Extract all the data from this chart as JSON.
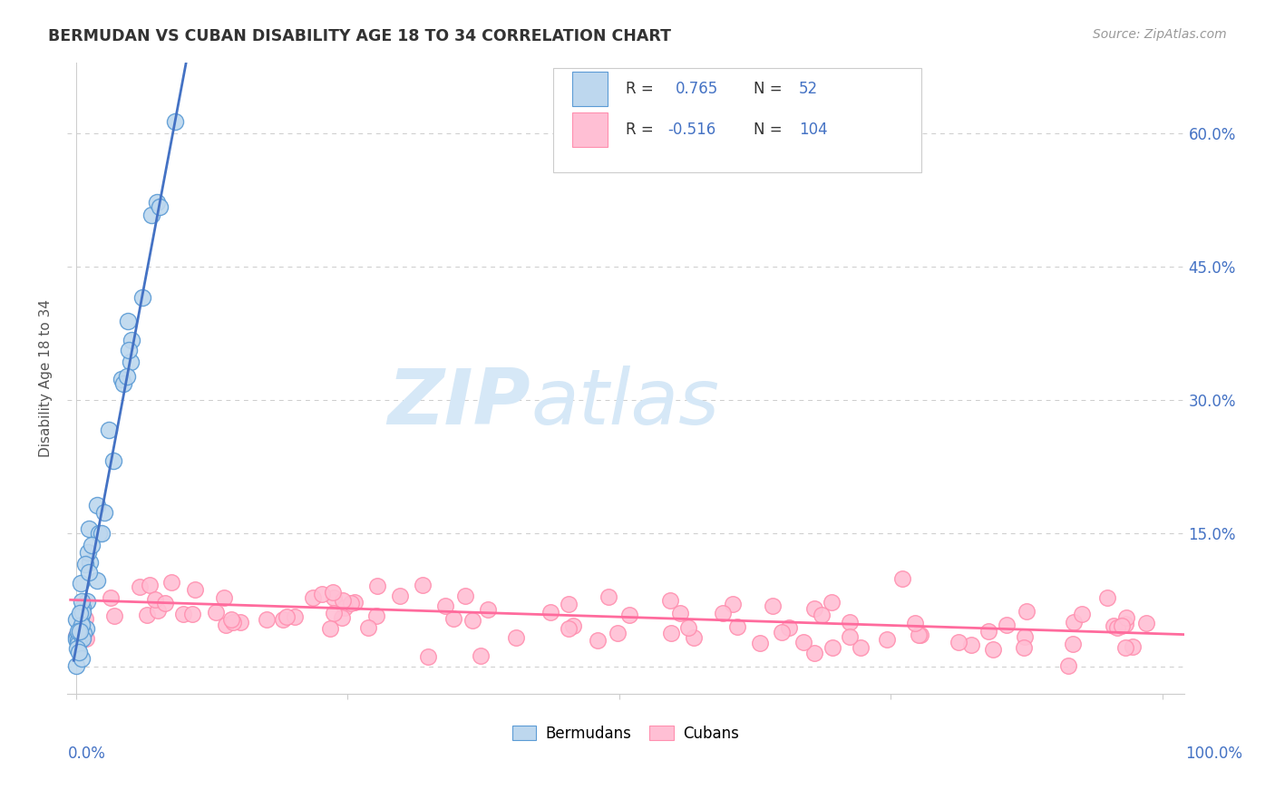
{
  "title": "BERMUDAN VS CUBAN DISABILITY AGE 18 TO 34 CORRELATION CHART",
  "source": "Source: ZipAtlas.com",
  "ylabel": "Disability Age 18 to 34",
  "ytick_vals": [
    0.0,
    0.15,
    0.3,
    0.45,
    0.6
  ],
  "ytick_labels": [
    "",
    "15.0%",
    "30.0%",
    "45.0%",
    "60.0%"
  ],
  "xlim": [
    -0.008,
    1.02
  ],
  "ylim": [
    -0.03,
    0.68
  ],
  "blue_fill": "#BDD7EE",
  "blue_edge": "#5B9BD5",
  "pink_fill": "#FFBFD4",
  "pink_edge": "#FF8FAF",
  "trend_blue": "#4472C4",
  "trend_pink": "#FF6B9D",
  "watermark_color": "#D6E8F7",
  "grid_color": "#CCCCCC",
  "legend_text_color": "#333333",
  "legend_val_color": "#4472C4",
  "title_color": "#333333",
  "source_color": "#999999",
  "axis_label_color": "#4472C4",
  "ylabel_color": "#555555"
}
